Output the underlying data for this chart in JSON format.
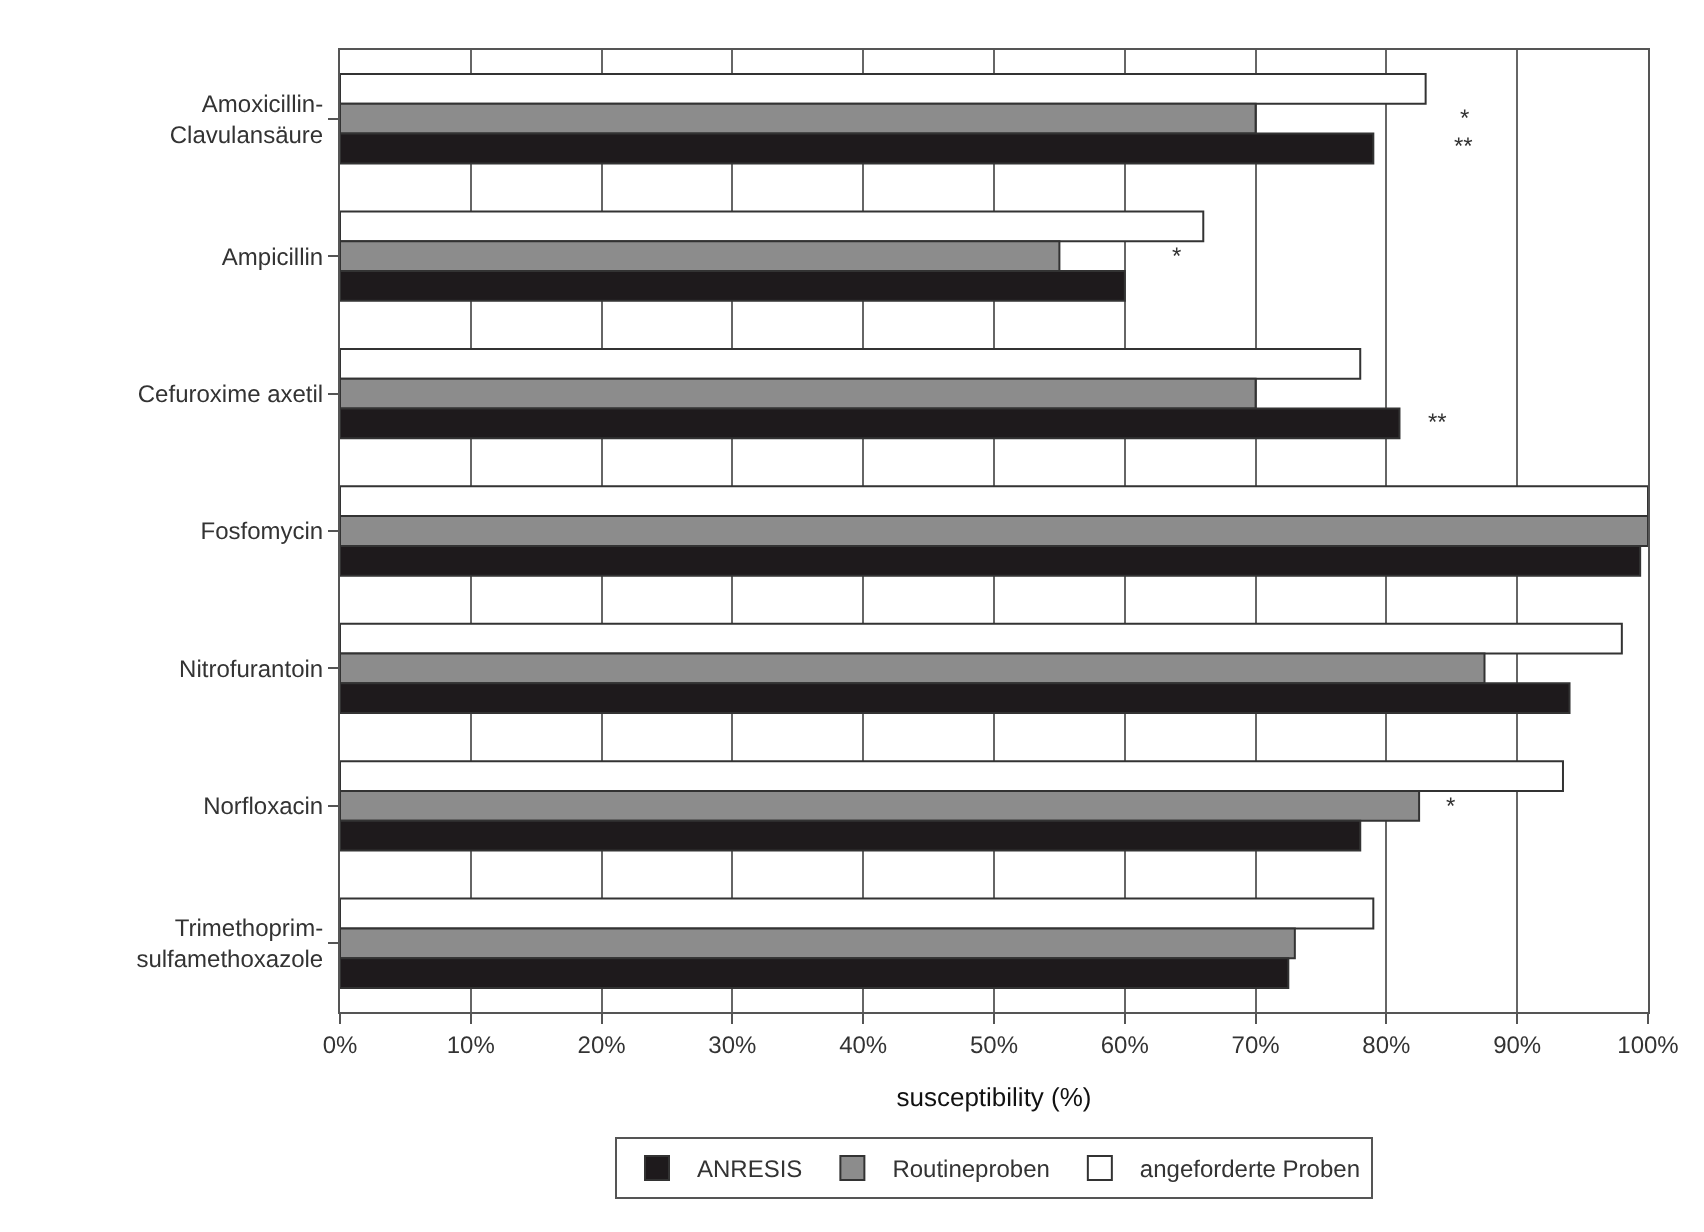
{
  "chart_data": {
    "type": "bar",
    "orientation": "horizontal",
    "xlabel": "susceptibility (%)",
    "categories": [
      "Amoxicillin-\nClavulansäure",
      "Ampicillin",
      "Cefuroxime axetil",
      "Fosfomycin",
      "Nitrofurantoin",
      "Norfloxacin",
      "Trimethoprim-\nsulfamethoxazole"
    ],
    "series": [
      {
        "name": "ANRESIS",
        "color": "#1e1a1c",
        "values": [
          79,
          60,
          81,
          99.4,
          94,
          78,
          72.5
        ]
      },
      {
        "name": "Routineproben",
        "color": "#8c8c8c",
        "values": [
          70,
          55,
          70,
          100,
          87.5,
          82.5,
          73
        ]
      },
      {
        "name": "angeforderte Proben",
        "color": "#ffffff",
        "values": [
          83,
          66,
          78,
          100,
          98,
          93.5,
          79
        ]
      }
    ],
    "xlim": [
      0,
      100
    ],
    "xticks": [
      {
        "value": 0,
        "label": "0%"
      },
      {
        "value": 10,
        "label": "10%"
      },
      {
        "value": 20,
        "label": "20%"
      },
      {
        "value": 30,
        "label": "30%"
      },
      {
        "value": 40,
        "label": "40%"
      },
      {
        "value": 50,
        "label": "50%"
      },
      {
        "value": 60,
        "label": "60%"
      },
      {
        "value": 70,
        "label": "70%"
      },
      {
        "value": 80,
        "label": "80%"
      },
      {
        "value": 90,
        "label": "90%"
      },
      {
        "value": 100,
        "label": "100%"
      }
    ],
    "annotations": [
      "*",
      "**",
      "*",
      "**",
      "*"
    ],
    "grid": "x",
    "legend": "bottom"
  }
}
